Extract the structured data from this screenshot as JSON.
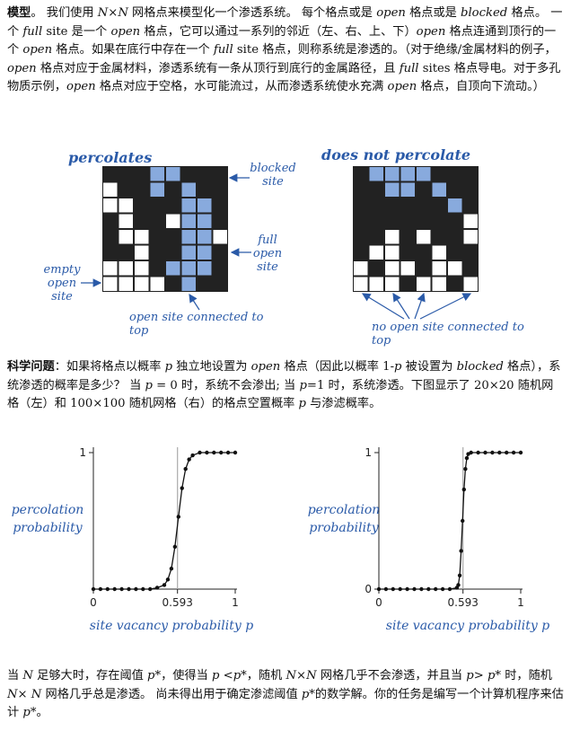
{
  "intro": {
    "model_heading": "模型",
    "p1_a": "。 我们使用 ",
    "p1_n": "N",
    "p1_b": "×",
    "p1_n2": "N",
    "p1_c": " 网格点来模型化一个渗透系统。 每个格点或是 ",
    "p1_open1": "open",
    "p1_d": " 格点或是 ",
    "p1_blocked1": "blocked",
    "p1_e": " 格点。 一个 ",
    "p1_full1": "full",
    "p1_f": " site 是一个 ",
    "p1_open2": "open",
    "p1_g": " 格点，它可以通过一系列的邻近（左、右、上、下）",
    "p1_open3": "open",
    "p1_h": " 格点连通到顶行的一个 ",
    "p1_open4": "open",
    "p1_i": " 格点。如果在底行中存在一个 ",
    "p1_full2": "full",
    "p1_j": " site 格点，则称系统是渗透的。（对于绝缘/金属材料的例子，",
    "p1_open5": "open",
    "p1_k": " 格点对应于金属材料，渗透系统有一条从顶行到底行的金属路径，且 ",
    "p1_full3": "full",
    "p1_l": " sites 格点导电。对于多孔物质示例，",
    "p1_open6": "open",
    "p1_m": " 格点对应于空格，水可能流过，从而渗透系统使水充满 ",
    "p1_open7": "open",
    "p1_o": " 格点，自顶向下流动。）"
  },
  "figure1": {
    "left_title": "percolates",
    "right_title": "does not percolate",
    "label_blocked": [
      "blocked",
      "site"
    ],
    "label_full": [
      "full",
      "open",
      "site"
    ],
    "label_empty": [
      "empty",
      "open",
      "site"
    ],
    "caption_left": "open site connected to top",
    "caption_right": "no open site connected to top",
    "colors": {
      "blocked": "#222222",
      "empty": "#ffffff",
      "full": "#88aadd",
      "label": "#2a5aa8"
    },
    "left_grid": [
      "BBBFFBBB",
      "EBBFBFBB",
      "EEBBBFFB",
      "BEBBEFFB",
      "BEEBBFFE",
      "BBEBBFFB",
      "EEEBFFFB",
      "EEEEBFBB"
    ],
    "right_grid": [
      "BFFFFBBB",
      "BBFFBFBB",
      "BBBBBBFB",
      "BBBBBBBE",
      "BBEBEBBE",
      "BEEBBEBB",
      "EBEEBEEB",
      "EEEBEEBE"
    ]
  },
  "problem": {
    "heading": "科学问题",
    "a": "：如果将格点以概率 ",
    "p1": "p",
    "b": " 独立地设置为 ",
    "open1": "open",
    "c": " 格点（因此以概率 1-",
    "p2": "p",
    "d": " 被设置为 ",
    "blocked1": "blocked",
    "e": " 格点），系统渗透的概率是多少？ 当 ",
    "p3": "p",
    "f": " = 0 时，系统不会渗出; 当 ",
    "p4": "p",
    "g": "=1 时，系统渗透。下图显示了 20×20 随机网格（左）和 100×100 随机网格（右）的格点空置概率 ",
    "p5": "p",
    "h": " 与渗滤概率。"
  },
  "chart_data": [
    {
      "type": "line",
      "ylabel": "percolation probability",
      "xlabel": "site vacancy probability p",
      "xlim": [
        0,
        1
      ],
      "ylim": [
        0,
        1
      ],
      "xticks": [
        "0",
        "0.593",
        "1"
      ],
      "yticks": [
        "1"
      ],
      "threshold": 0.593,
      "x": [
        0.0,
        0.05,
        0.1,
        0.15,
        0.2,
        0.25,
        0.3,
        0.35,
        0.4,
        0.45,
        0.5,
        0.525,
        0.55,
        0.575,
        0.6,
        0.625,
        0.65,
        0.675,
        0.7,
        0.75,
        0.8,
        0.85,
        0.9,
        0.95,
        1.0
      ],
      "y": [
        0,
        0,
        0,
        0,
        0,
        0,
        0,
        0,
        0,
        0.01,
        0.03,
        0.07,
        0.15,
        0.31,
        0.53,
        0.74,
        0.88,
        0.95,
        0.98,
        1,
        1,
        1,
        1,
        1,
        1
      ]
    },
    {
      "type": "line",
      "ylabel": "percolation probability",
      "xlabel": "site vacancy probability p",
      "xlim": [
        0,
        1
      ],
      "ylim": [
        0,
        1
      ],
      "xticks": [
        "0",
        "0.593",
        "1"
      ],
      "yticks": [
        "1",
        "0"
      ],
      "threshold": 0.593,
      "x": [
        0.0,
        0.05,
        0.1,
        0.15,
        0.2,
        0.25,
        0.3,
        0.35,
        0.4,
        0.45,
        0.5,
        0.55,
        0.56,
        0.57,
        0.58,
        0.59,
        0.6,
        0.61,
        0.62,
        0.63,
        0.65,
        0.7,
        0.75,
        0.8,
        0.85,
        0.9,
        0.95,
        1.0
      ],
      "y": [
        0,
        0,
        0,
        0,
        0,
        0,
        0,
        0,
        0,
        0,
        0,
        0.01,
        0.03,
        0.1,
        0.28,
        0.5,
        0.73,
        0.88,
        0.96,
        0.99,
        1,
        1,
        1,
        1,
        1,
        1,
        1,
        1
      ]
    }
  ],
  "conclusion": {
    "a": "当 ",
    "n1": "N",
    "b": " 足够大时，存在阈值 ",
    "ps1": "p*",
    "c": "，使得当 ",
    "lt": "p <p*",
    "d": "，随机 ",
    "nn1": "N×N",
    "e": " 网格几乎不会渗透，并且当 ",
    "gt": "p> p*",
    "f": " 时，随机 ",
    "nn2": "N× N",
    "g": " 网格几乎总是渗透。 尚未得出用于确定渗滤阈值 ",
    "ps2": "p*",
    "h": "的数学解。你的任务是编写一个计算机程序来估计 ",
    "ps3": "p*",
    "i": "。"
  }
}
